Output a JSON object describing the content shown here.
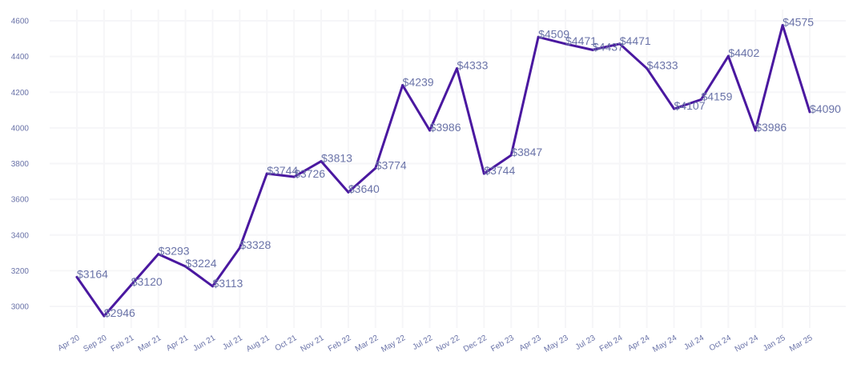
{
  "chart_data": {
    "type": "line",
    "title": "",
    "xlabel": "",
    "ylabel": "",
    "ylim": [
      2900,
      4650
    ],
    "y_ticks": [
      3000,
      3200,
      3400,
      3600,
      3800,
      4000,
      4200,
      4400,
      4600
    ],
    "grid": true,
    "categories": [
      "Apr 20",
      "Sep 20",
      "Feb 21",
      "Mar 21",
      "Apr 21",
      "Jun 21",
      "Jul 21",
      "Aug 21",
      "Oct 21",
      "Nov 21",
      "Feb 22",
      "Mar 22",
      "May 22",
      "Jul 22",
      "Nov 22",
      "Dec 22",
      "Feb 23",
      "Apr 23",
      "May 23",
      "Jul 23",
      "Feb 24",
      "Apr 24",
      "May 24",
      "Jul 24",
      "Oct 24",
      "Nov 24",
      "Jan 25",
      "Mar 25"
    ],
    "series": [
      {
        "values": [
          3164,
          2946,
          3120,
          3293,
          3224,
          3113,
          3328,
          3744,
          3726,
          3813,
          3640,
          3774,
          4239,
          3986,
          4333,
          3744,
          3847,
          4509,
          4471,
          4437,
          4471,
          4333,
          4107,
          4159,
          4402,
          3986,
          4575,
          4090
        ],
        "labels": [
          "$3164",
          "$2946",
          "$3120",
          "$3293",
          "$3224",
          "$3113",
          "$3328",
          "$3744",
          "$3726",
          "$3813",
          "$3640",
          "$3774",
          "$4239",
          "$3986",
          "$4333",
          "$3744",
          "$3847",
          "$4509",
          "$4471",
          "$4437",
          "$4471",
          "$4333",
          "$4107",
          "$4159",
          "$4402",
          "$3986",
          "$4575",
          "$4090"
        ],
        "color": "#4a18a0"
      }
    ]
  }
}
